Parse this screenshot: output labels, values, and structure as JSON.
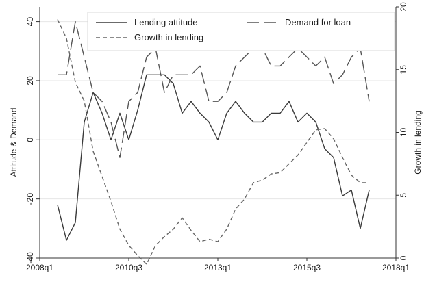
{
  "chart_data": {
    "type": "line",
    "title": "",
    "x_type": "quarter",
    "x_tick_labels": [
      "2008q1",
      "2010q3",
      "2013q1",
      "2015q3",
      "2018q1"
    ],
    "x_tick_positions": [
      "2008q1",
      "2010q3",
      "2013q1",
      "2015q3",
      "2018q1"
    ],
    "xlim": [
      "2008q1",
      "2018q1"
    ],
    "left_axis": {
      "label": "Attitude & Demand",
      "ylim": [
        -40,
        45
      ],
      "ticks": [
        -40,
        -20,
        0,
        20,
        40
      ],
      "tick_labels": [
        "-40",
        "-20",
        "0",
        "20",
        "40"
      ]
    },
    "right_axis": {
      "label": "Growth in lending",
      "ylim": [
        0,
        20
      ],
      "ticks": [
        0,
        5,
        10,
        15,
        20
      ],
      "tick_labels": [
        "0",
        "5",
        "10",
        "15",
        "20"
      ]
    },
    "grid": "horizontal",
    "legend_position": "top",
    "series": [
      {
        "name": "Lending attitude",
        "axis": "left",
        "dash": "solid",
        "x": [
          "2008q3",
          "2008q4",
          "2009q1",
          "2009q2",
          "2009q3",
          "2009q4",
          "2010q1",
          "2010q2",
          "2010q3",
          "2010q4",
          "2011q1",
          "2011q2",
          "2011q3",
          "2011q4",
          "2012q1",
          "2012q2",
          "2012q3",
          "2012q4",
          "2013q1",
          "2013q2",
          "2013q3",
          "2013q4",
          "2014q1",
          "2014q2",
          "2014q3",
          "2014q4",
          "2015q1",
          "2015q2",
          "2015q3",
          "2015q4",
          "2016q1",
          "2016q2",
          "2016q3",
          "2016q4",
          "2017q1",
          "2017q2"
        ],
        "values": [
          -22,
          -34,
          -28,
          6,
          16,
          9,
          0,
          9,
          0,
          10,
          22,
          22,
          22,
          19,
          9,
          13,
          9,
          6,
          0,
          9,
          13,
          9,
          6,
          6,
          9,
          9,
          13,
          6,
          9,
          6,
          -3,
          -6,
          -19,
          -17,
          -30,
          -17
        ]
      },
      {
        "name": "Demand for loan",
        "axis": "left",
        "dash": "long",
        "x": [
          "2008q3",
          "2008q4",
          "2009q1",
          "2009q2",
          "2009q3",
          "2009q4",
          "2010q1",
          "2010q2",
          "2010q3",
          "2010q4",
          "2011q1",
          "2011q2",
          "2011q3",
          "2011q4",
          "2012q1",
          "2012q2",
          "2012q3",
          "2012q4",
          "2013q1",
          "2013q2",
          "2013q3",
          "2013q4",
          "2014q1",
          "2014q2",
          "2014q3",
          "2014q4",
          "2015q1",
          "2015q2",
          "2015q3",
          "2015q4",
          "2016q1",
          "2016q2",
          "2016q3",
          "2016q4",
          "2017q1",
          "2017q2"
        ],
        "values": [
          22,
          22,
          40,
          28,
          16,
          13,
          6,
          -6,
          13,
          16,
          28,
          31,
          16,
          22,
          22,
          22,
          25,
          13,
          13,
          16,
          25,
          28,
          31,
          31,
          25,
          25,
          28,
          31,
          28,
          25,
          28,
          19,
          22,
          28,
          31,
          13
        ]
      },
      {
        "name": "Growth in lending",
        "axis": "right",
        "dash": "short",
        "x": [
          "2008q3",
          "2008q4",
          "2009q1",
          "2009q2",
          "2009q3",
          "2009q4",
          "2010q1",
          "2010q2",
          "2010q3",
          "2010q4",
          "2011q1",
          "2011q2",
          "2011q3",
          "2011q4",
          "2012q1",
          "2012q2",
          "2012q3",
          "2012q4",
          "2013q1",
          "2013q2",
          "2013q3",
          "2013q4",
          "2014q1",
          "2014q2",
          "2014q3",
          "2014q4",
          "2015q1",
          "2015q2",
          "2015q3",
          "2015q4",
          "2016q1",
          "2016q2",
          "2016q3",
          "2016q4",
          "2017q1",
          "2017q2"
        ],
        "values": [
          19,
          17.5,
          14,
          12.5,
          8.5,
          6.5,
          4.5,
          2.3,
          1,
          0.2,
          -0.5,
          1,
          1.7,
          2.3,
          3.2,
          2.2,
          1.3,
          1.5,
          1.3,
          2.3,
          3.9,
          4.7,
          6,
          6.2,
          6.7,
          6.8,
          7.5,
          8.2,
          9.2,
          10.2,
          10.3,
          9.5,
          8,
          6.6,
          6,
          6
        ]
      }
    ]
  }
}
